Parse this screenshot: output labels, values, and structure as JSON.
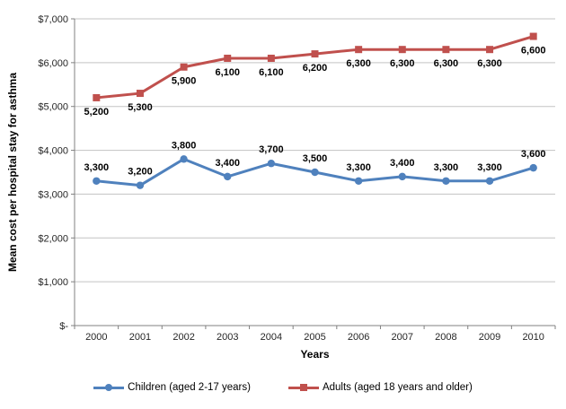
{
  "chart_data": {
    "type": "line",
    "xlabel": "Years",
    "ylabel": "Mean cost per hospital stay for asthma",
    "categories": [
      "2000",
      "2001",
      "2002",
      "2003",
      "2004",
      "2005",
      "2006",
      "2007",
      "2008",
      "2009",
      "2010"
    ],
    "series": [
      {
        "name": "Children (aged 2-17 years)",
        "color": "#4F81BD",
        "marker": "circle",
        "label_side": "above",
        "values": [
          3300,
          3200,
          3800,
          3400,
          3700,
          3500,
          3300,
          3400,
          3300,
          3300,
          3600
        ],
        "labels": [
          "3,300",
          "3,200",
          "3,800",
          "3,400",
          "3,700",
          "3,500",
          "3,300",
          "3,400",
          "3,300",
          "3,300",
          "3,600"
        ]
      },
      {
        "name": "Adults (aged 18 years and older)",
        "color": "#C0504D",
        "marker": "square",
        "label_side": "below",
        "values": [
          5200,
          5300,
          5900,
          6100,
          6100,
          6200,
          6300,
          6300,
          6300,
          6300,
          6600
        ],
        "labels": [
          "5,200",
          "5,300",
          "5,900",
          "6,100",
          "6,100",
          "6,200",
          "6,300",
          "6,300",
          "6,300",
          "6,300",
          "6,600"
        ]
      }
    ],
    "y_ticks": [
      {
        "value": 0,
        "label": "$-"
      },
      {
        "value": 1000,
        "label": "$1,000"
      },
      {
        "value": 2000,
        "label": "$2,000"
      },
      {
        "value": 3000,
        "label": "$3,000"
      },
      {
        "value": 4000,
        "label": "$4,000"
      },
      {
        "value": 5000,
        "label": "$5,000"
      },
      {
        "value": 6000,
        "label": "$6,000"
      },
      {
        "value": 7000,
        "label": "$7,000"
      }
    ],
    "ylim": [
      0,
      7000
    ],
    "grid": true,
    "legend_position": "bottom",
    "colors": {
      "gridline": "#C3C3C3",
      "axis": "#808080",
      "tick_label": "#262626",
      "data_label": "#000000"
    }
  }
}
